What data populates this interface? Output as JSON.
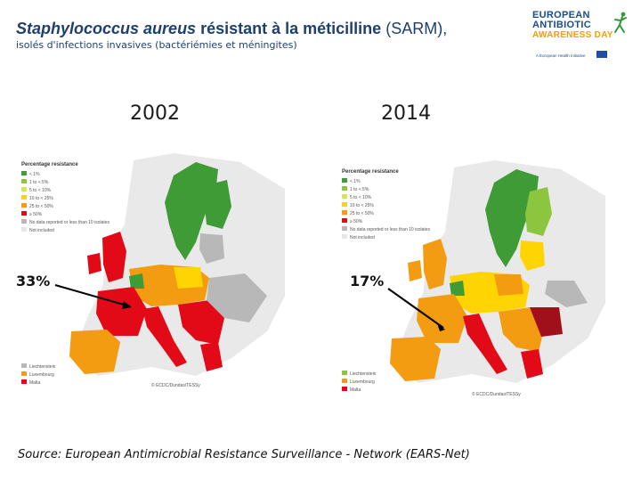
{
  "title": {
    "species": "Staphylococcus aureus",
    "resistance": "résistant à la méticilline",
    "abbrev": "(SARM),"
  },
  "subtitle": "isolés d'infections invasives (bactériémies et méningites)",
  "logo": {
    "line1": "EUROPEAN",
    "line2": "ANTIBIOTIC",
    "line3": "AWARENESS DAY",
    "tagline": "A European Health Initiative"
  },
  "maps": [
    {
      "year": "2002",
      "percentage": "33%",
      "legend_title": "Percentage resistance",
      "legend": [
        "< 1%",
        "1 to < 5%",
        "5 to < 10%",
        "10 to < 25%",
        "25 to < 50%",
        "≥ 50%",
        "No data reported or less than 10 isolates",
        "Not included"
      ],
      "microstates": [
        "Liechtenstein",
        "Luxembourg",
        "Malta"
      ],
      "copyright": "© ECDC/Dundas/TESSy"
    },
    {
      "year": "2014",
      "percentage": "17%",
      "legend_title": "Percentage resistance",
      "legend": [
        "< 1%",
        "1 to < 5%",
        "5 to < 10%",
        "10 to < 25%",
        "25 to < 50%",
        "≥ 50%",
        "No data reported or less than 10 isolates",
        "Not included"
      ],
      "microstates": [
        "Liechtenstein",
        "Luxembourg",
        "Malta"
      ],
      "copyright": "© ECDC/Dundas/TESSy"
    }
  ],
  "legend_colors": [
    "#3f9b35",
    "#8cc63e",
    "#d7e35a",
    "#ffd400",
    "#f39c12",
    "#e30a17",
    "#b8b8b8",
    "#e6e6e6"
  ],
  "source": "Source: European Antimicrobial Resistance Surveillance - Network (EARS-Net)"
}
